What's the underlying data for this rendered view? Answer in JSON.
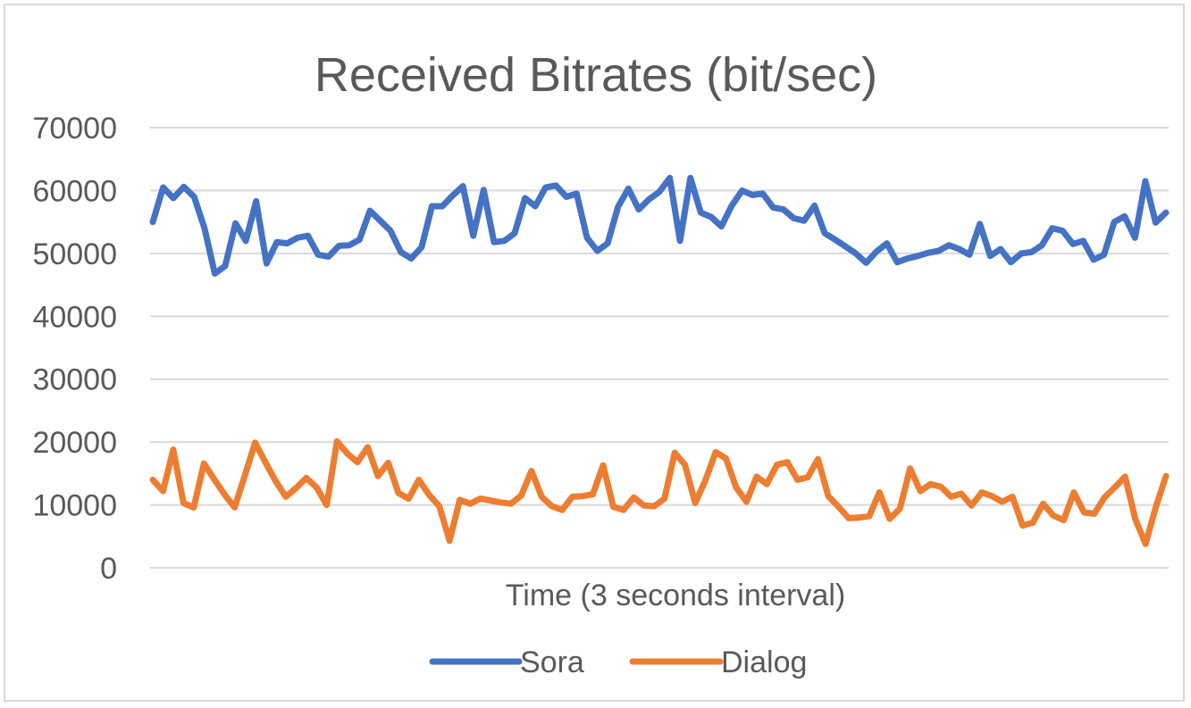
{
  "chart_data": {
    "type": "line",
    "title": "Received Bitrates (bit/sec)",
    "xlabel": "Time (3 seconds interval)",
    "ylabel": "",
    "ylim": [
      0,
      70000
    ],
    "yticks": [
      0,
      10000,
      20000,
      30000,
      40000,
      50000,
      60000,
      70000
    ],
    "grid": true,
    "legend_position": "bottom",
    "colors": {
      "Sora": "#4472C4",
      "Dialog": "#ED7D31",
      "grid": "#d9d9d9",
      "text": "#595959"
    },
    "series": [
      {
        "name": "Sora",
        "values": [
          55000,
          60500,
          58800,
          60600,
          59000,
          54000,
          46800,
          48000,
          54800,
          52000,
          58300,
          48400,
          51800,
          51600,
          52500,
          52800,
          49800,
          49500,
          51200,
          51300,
          52200,
          56800,
          55200,
          53600,
          50200,
          49200,
          51000,
          57500,
          57500,
          59200,
          60700,
          52800,
          60100,
          51800,
          52000,
          53200,
          58800,
          57500,
          60500,
          60800,
          59000,
          59500,
          52500,
          50400,
          51600,
          57400,
          60300,
          57000,
          58600,
          59800,
          62000,
          52000,
          62000,
          56500,
          55800,
          54300,
          57600,
          60000,
          59300,
          59500,
          57300,
          57000,
          55600,
          55200,
          57600,
          53200,
          52200,
          51100,
          50000,
          48500,
          50300,
          51600,
          48600,
          49200,
          49600,
          50100,
          50400,
          51300,
          50700,
          49800,
          54700,
          49600,
          50700,
          48600,
          50000,
          50200,
          51300,
          54000,
          53600,
          51500,
          52000,
          49000,
          49800,
          55000,
          55900,
          52500,
          61500,
          54900,
          56500
        ]
      },
      {
        "name": "Dialog",
        "values": [
          14000,
          12200,
          18800,
          10300,
          9600,
          16600,
          14100,
          11700,
          9600,
          14700,
          19900,
          16800,
          13800,
          11300,
          12700,
          14300,
          12800,
          10000,
          20100,
          18200,
          16800,
          19200,
          14600,
          16700,
          11900,
          11000,
          14000,
          11600,
          9800,
          4300,
          10800,
          10200,
          11000,
          10700,
          10400,
          10200,
          11500,
          15400,
          11300,
          9800,
          9200,
          11300,
          11400,
          11700,
          16300,
          9700,
          9200,
          11200,
          9900,
          9800,
          11000,
          18300,
          16400,
          10300,
          13900,
          18400,
          17400,
          12800,
          10500,
          14500,
          13300,
          16400,
          16800,
          14000,
          14400,
          17300,
          11400,
          9700,
          7900,
          8000,
          8200,
          12000,
          7800,
          9400,
          15800,
          12200,
          13300,
          12900,
          11300,
          11800,
          9900,
          12000,
          11400,
          10500,
          11300,
          6700,
          7200,
          10200,
          8300,
          7600,
          12000,
          8800,
          8600,
          11200,
          12800,
          14500,
          7800,
          3800,
          9600,
          14600
        ]
      }
    ]
  }
}
